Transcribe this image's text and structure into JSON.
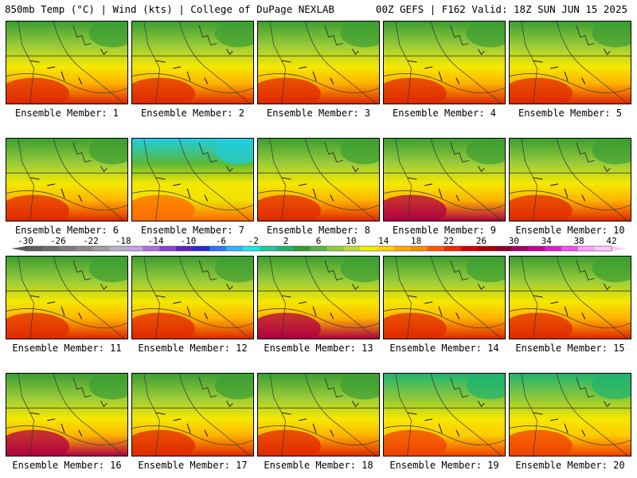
{
  "header": {
    "left": "850mb Temp (°C) | Wind (kts) | College of DuPage NEXLAB",
    "right": "00Z GEFS | F162 Valid: 18Z SUN JUN 15 2025"
  },
  "panel_label_prefix": "Ensemble Member: ",
  "members": [
    "1",
    "2",
    "3",
    "4",
    "5",
    "6",
    "7",
    "8",
    "9",
    "10",
    "11",
    "12",
    "13",
    "14",
    "15",
    "16",
    "17",
    "18",
    "19",
    "20"
  ],
  "colorbar": {
    "ticks": [
      "-30",
      "-26",
      "-22",
      "-18",
      "-14",
      "-10",
      "-6",
      "-2",
      "2",
      "6",
      "10",
      "14",
      "18",
      "22",
      "26",
      "30",
      "34",
      "38",
      "42"
    ],
    "colors": [
      "#5e5e5e",
      "#6e6e6e",
      "#7d7d7d",
      "#8c8c8c",
      "#a0a0a0",
      "#b5b5c8",
      "#c8a0e6",
      "#b070e0",
      "#9040d8",
      "#6020c0",
      "#2a2ad2",
      "#2878ff",
      "#28b8ff",
      "#22e8e8",
      "#1ec8a0",
      "#20b46e",
      "#2aa034",
      "#5ab83a",
      "#96cc3c",
      "#c4dc3c",
      "#f0f000",
      "#ffd200",
      "#ffaa00",
      "#ff8c00",
      "#ff5a00",
      "#f02800",
      "#d20000",
      "#aa0000",
      "#8c0028",
      "#a00064",
      "#c0009a",
      "#dc20d0",
      "#f050f0",
      "#ffa0ff",
      "#ffc8ff"
    ]
  }
}
